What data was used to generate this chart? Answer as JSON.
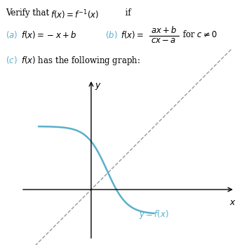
{
  "part_color": "#5AAFCA",
  "curve_color": "#5AAFCA",
  "dashed_color": "#999999",
  "background": "#ffffff",
  "axis_label_x": "x",
  "axis_label_y": "y"
}
